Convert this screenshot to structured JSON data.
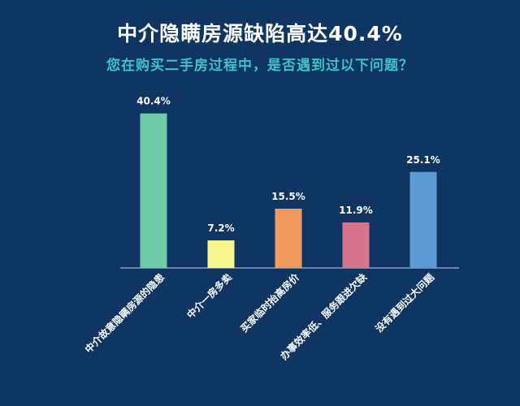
{
  "title": "中介隐瞒房源缺陷高达40.4%",
  "subtitle": "您在购买二手房过程中，是否遇到过以下问题？",
  "chart_data": {
    "type": "bar",
    "categories": [
      "中介故意隐瞒房源的隐患",
      "中介一房多卖",
      "买家临时抬高房价",
      "办事效率低、服务跟进欠缺",
      "没有遇到过大问题"
    ],
    "values": [
      40.4,
      7.2,
      15.5,
      11.9,
      25.1
    ],
    "value_labels": [
      "40.4%",
      "7.2%",
      "15.5%",
      "11.9%",
      "25.1%"
    ],
    "colors": [
      "#6ecba7",
      "#f6f58c",
      "#f19a5f",
      "#d9748f",
      "#5c9ad6"
    ],
    "ylim": [
      0,
      45
    ],
    "grid": false,
    "legend": "none",
    "xlabel": "",
    "ylabel": ""
  }
}
